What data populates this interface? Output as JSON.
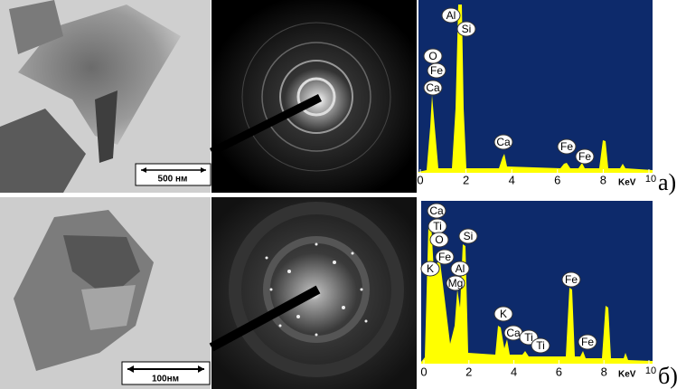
{
  "figure": {
    "panels": [
      {
        "label": "а)",
        "scale_bar": "500 нм",
        "spectrum": {
          "elements": [
            "Al",
            "Si",
            "O",
            "Fe",
            "Ca",
            "Ca",
            "Fe",
            "Fe"
          ],
          "x_ticks": [
            0,
            2,
            4,
            6,
            8,
            10
          ],
          "x_unit": "KeV"
        }
      },
      {
        "label": "б)",
        "scale_bar": "100нм",
        "spectrum": {
          "elements": [
            "Ca",
            "Ti",
            "O",
            "Fe",
            "K",
            "Si",
            "Al",
            "Mg",
            "Fe",
            "K",
            "Ca",
            "Ti",
            "Ti",
            "Fe"
          ],
          "x_ticks": [
            0,
            2,
            4,
            6,
            8,
            10
          ],
          "x_unit": "KeV"
        }
      }
    ]
  }
}
